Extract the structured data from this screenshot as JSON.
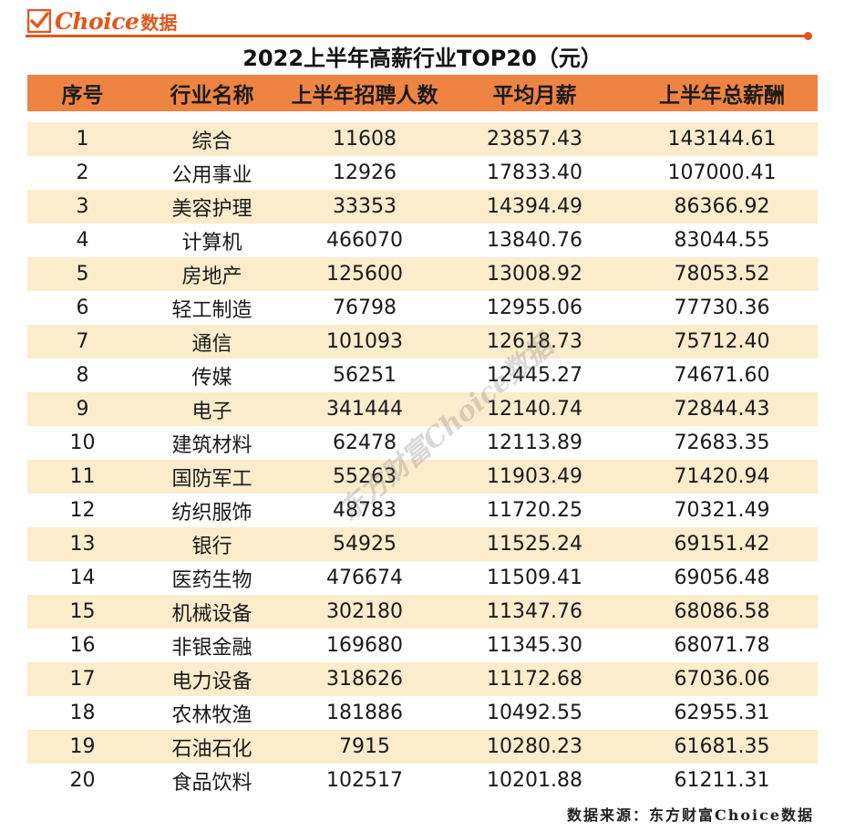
{
  "logo": {
    "word": "Choice",
    "cn": "数据"
  },
  "title": "2022上半年高薪行业TOP20（元）",
  "headers": [
    "序号",
    "行业名称",
    "上半年招聘人数",
    "平均月薪",
    "上半年总薪酬"
  ],
  "rows": [
    [
      "1",
      "综合",
      "11608",
      "23857.43",
      "143144.61"
    ],
    [
      "2",
      "公用事业",
      "12926",
      "17833.40",
      "107000.41"
    ],
    [
      "3",
      "美容护理",
      "33353",
      "14394.49",
      "86366.92"
    ],
    [
      "4",
      "计算机",
      "466070",
      "13840.76",
      "83044.55"
    ],
    [
      "5",
      "房地产",
      "125600",
      "13008.92",
      "78053.52"
    ],
    [
      "6",
      "轻工制造",
      "76798",
      "12955.06",
      "77730.36"
    ],
    [
      "7",
      "通信",
      "101093",
      "12618.73",
      "75712.40"
    ],
    [
      "8",
      "传媒",
      "56251",
      "12445.27",
      "74671.60"
    ],
    [
      "9",
      "电子",
      "341444",
      "12140.74",
      "72844.43"
    ],
    [
      "10",
      "建筑材料",
      "62478",
      "12113.89",
      "72683.35"
    ],
    [
      "11",
      "国防军工",
      "55263",
      "11903.49",
      "71420.94"
    ],
    [
      "12",
      "纺织服饰",
      "48783",
      "11720.25",
      "70321.49"
    ],
    [
      "13",
      "银行",
      "54925",
      "11525.24",
      "69151.42"
    ],
    [
      "14",
      "医药生物",
      "476674",
      "11509.41",
      "69056.48"
    ],
    [
      "15",
      "机械设备",
      "302180",
      "11347.76",
      "68086.58"
    ],
    [
      "16",
      "非银金融",
      "169680",
      "11345.30",
      "68071.78"
    ],
    [
      "17",
      "电力设备",
      "318626",
      "11172.68",
      "67036.06"
    ],
    [
      "18",
      "农林牧渔",
      "181886",
      "10492.55",
      "62955.31"
    ],
    [
      "19",
      "石油石化",
      "7915",
      "10280.23",
      "61681.35"
    ],
    [
      "20",
      "食品饮料",
      "102517",
      "10201.88",
      "61211.31"
    ]
  ],
  "watermark": "东方财富Choice数据",
  "source": "数据来源：东方财富Choice数据",
  "colors": {
    "accent": "#e2571e",
    "header_bg": "#ef8442",
    "stripe": "#fbeccc"
  }
}
